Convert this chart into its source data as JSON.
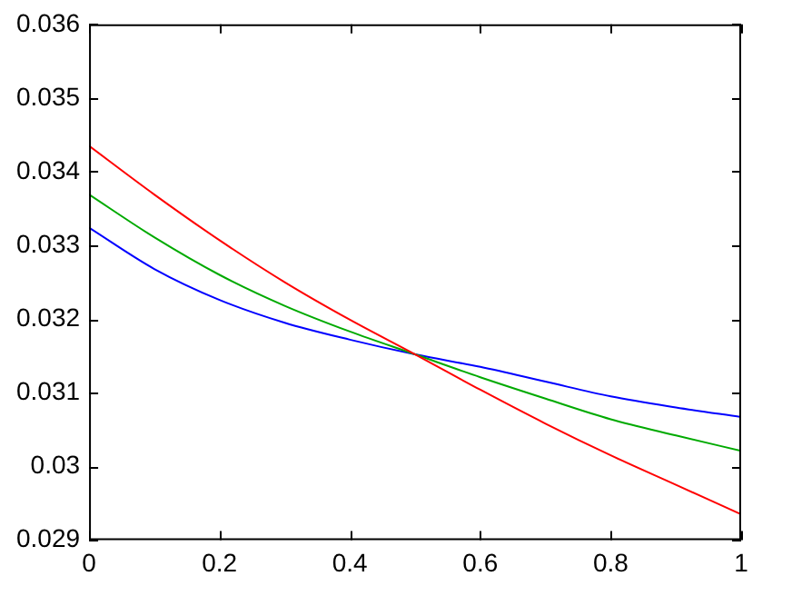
{
  "chart_data": {
    "type": "line",
    "x": [
      0,
      0.1,
      0.2,
      0.3,
      0.4,
      0.5,
      0.6,
      0.7,
      0.8,
      0.9,
      1
    ],
    "series": [
      {
        "color": "#ff0000",
        "values": [
          0.03435,
          0.03369,
          0.03307,
          0.0325,
          0.03199,
          0.03152,
          0.03104,
          0.03058,
          0.03015,
          0.02975,
          0.02935
        ]
      },
      {
        "color": "#00aa00",
        "values": [
          0.03369,
          0.03311,
          0.0326,
          0.03218,
          0.03183,
          0.03152,
          0.03121,
          0.03092,
          0.03064,
          0.03042,
          0.03021
        ]
      },
      {
        "color": "#0000ff",
        "values": [
          0.03324,
          0.03268,
          0.03226,
          0.03195,
          0.03172,
          0.03152,
          0.03135,
          0.03115,
          0.03095,
          0.0308,
          0.03067
        ]
      }
    ],
    "xlim": [
      0,
      1
    ],
    "xticks": [
      0,
      {
        "value": 0.2,
        "label": "0.2"
      },
      {
        "value": 0.4,
        "label": "0.4"
      },
      {
        "value": 0.6,
        "label": "0.6"
      },
      {
        "value": 0.8,
        "label": "0.8"
      },
      1
    ],
    "ylim": [
      0.029,
      0.036
    ],
    "yticks": [
      0.029,
      0.03,
      0.031,
      0.032,
      0.033,
      0.034,
      0.035,
      0.036
    ],
    "grid": false,
    "legend": false,
    "marker": "none",
    "line_style": "solid"
  }
}
